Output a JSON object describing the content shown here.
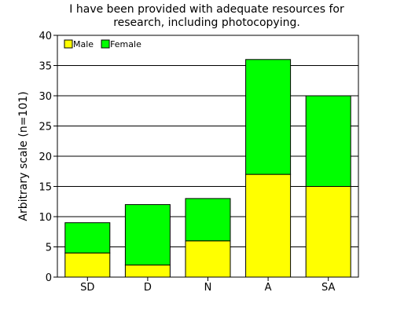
{
  "chart_data": {
    "type": "bar",
    "stacked": true,
    "title_lines": [
      "I have been provided with adequate resources for",
      "research, including photocopying."
    ],
    "xlabel": "",
    "ylabel": "Arbitrary scale (n=101)",
    "categories": [
      "SD",
      "D",
      "N",
      "A",
      "SA"
    ],
    "series": [
      {
        "name": "Male",
        "values": [
          4,
          2,
          6,
          17,
          15
        ],
        "color": "#ffff00"
      },
      {
        "name": "Female",
        "values": [
          5,
          10,
          7,
          19,
          15
        ],
        "color": "#00ff00"
      }
    ],
    "ylim": [
      0,
      40
    ],
    "yticks": [
      0,
      5,
      10,
      15,
      20,
      25,
      30,
      35,
      40
    ],
    "grid": true,
    "legend_position": "top-left"
  }
}
